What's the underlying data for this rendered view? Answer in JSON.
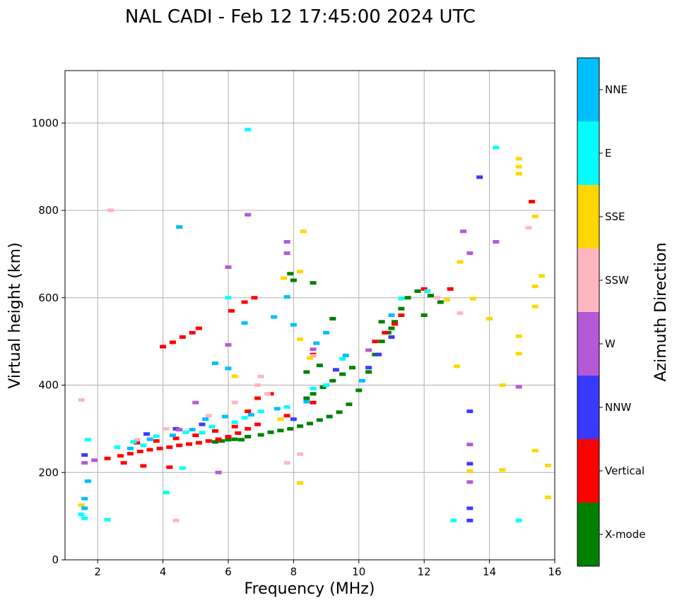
{
  "chart_data": {
    "type": "scatter",
    "title": "NAL CADI - Feb 12 17:45:00 2024 UTC",
    "xlabel": "Frequency (MHz)",
    "ylabel": "Virtual height (km)",
    "xlim": [
      1,
      16
    ],
    "ylim": [
      0,
      1120
    ],
    "xticks": [
      2,
      4,
      6,
      8,
      10,
      12,
      14,
      16
    ],
    "yticks": [
      0,
      200,
      400,
      600,
      800,
      1000
    ],
    "grid": true,
    "colorbar": {
      "label": "Azimuth Direction",
      "categories": [
        "X-mode",
        "Vertical",
        "NNW",
        "W",
        "SSW",
        "SSE",
        "E",
        "NNE"
      ],
      "colors": [
        "#008000",
        "#ff0000",
        "#3a3aff",
        "#b45ad6",
        "#ffb6c1",
        "#ffd700",
        "#00ffff",
        "#00bfff"
      ]
    },
    "series": [
      {
        "name": "X-mode",
        "points": [
          [
            5.6,
            270
          ],
          [
            5.8,
            272
          ],
          [
            6.0,
            275
          ],
          [
            6.2,
            276
          ],
          [
            6.4,
            275
          ],
          [
            6.6,
            282
          ],
          [
            7.0,
            286
          ],
          [
            7.3,
            292
          ],
          [
            7.6,
            296
          ],
          [
            7.9,
            300
          ],
          [
            8.2,
            306
          ],
          [
            8.5,
            312
          ],
          [
            8.8,
            320
          ],
          [
            9.1,
            328
          ],
          [
            9.4,
            338
          ],
          [
            9.7,
            356
          ],
          [
            10.0,
            388
          ],
          [
            10.3,
            430
          ],
          [
            10.5,
            470
          ],
          [
            10.7,
            500
          ],
          [
            10.9,
            520
          ],
          [
            11.1,
            545
          ],
          [
            11.3,
            575
          ],
          [
            11.5,
            600
          ],
          [
            11.8,
            615
          ],
          [
            12.2,
            605
          ],
          [
            12.5,
            590
          ],
          [
            8.4,
            370
          ],
          [
            8.6,
            380
          ],
          [
            8.9,
            395
          ],
          [
            9.2,
            410
          ],
          [
            9.5,
            425
          ],
          [
            9.8,
            440
          ],
          [
            8.0,
            640
          ],
          [
            8.6,
            634
          ],
          [
            9.2,
            552
          ],
          [
            10.7,
            545
          ],
          [
            7.9,
            655
          ],
          [
            8.4,
            430
          ],
          [
            8.8,
            445
          ],
          [
            12.0,
            560
          ],
          [
            11.0,
            530
          ]
        ]
      },
      {
        "name": "Vertical",
        "points": [
          [
            2.3,
            232
          ],
          [
            2.7,
            238
          ],
          [
            3.0,
            243
          ],
          [
            3.3,
            248
          ],
          [
            3.6,
            252
          ],
          [
            3.9,
            255
          ],
          [
            4.2,
            258
          ],
          [
            4.5,
            262
          ],
          [
            4.8,
            265
          ],
          [
            5.1,
            268
          ],
          [
            5.4,
            272
          ],
          [
            5.7,
            276
          ],
          [
            6.0,
            282
          ],
          [
            6.3,
            290
          ],
          [
            6.6,
            300
          ],
          [
            6.9,
            310
          ],
          [
            3.2,
            268
          ],
          [
            3.8,
            272
          ],
          [
            4.4,
            278
          ],
          [
            5.0,
            285
          ],
          [
            5.6,
            295
          ],
          [
            6.2,
            305
          ],
          [
            6.6,
            340
          ],
          [
            6.9,
            370
          ],
          [
            7.3,
            380
          ],
          [
            4.0,
            488
          ],
          [
            4.3,
            498
          ],
          [
            4.6,
            510
          ],
          [
            4.9,
            520
          ],
          [
            5.1,
            530
          ],
          [
            6.1,
            570
          ],
          [
            6.5,
            590
          ],
          [
            6.8,
            600
          ],
          [
            8.6,
            470
          ],
          [
            10.5,
            500
          ],
          [
            10.8,
            520
          ],
          [
            11.1,
            540
          ],
          [
            11.3,
            560
          ],
          [
            12.0,
            620
          ],
          [
            12.8,
            620
          ],
          [
            15.3,
            820
          ],
          [
            2.8,
            222
          ],
          [
            3.4,
            215
          ],
          [
            4.2,
            212
          ],
          [
            7.8,
            330
          ],
          [
            8.6,
            360
          ]
        ]
      },
      {
        "name": "NNW",
        "points": [
          [
            1.6,
            240
          ],
          [
            13.4,
            220
          ],
          [
            13.4,
            340
          ],
          [
            13.4,
            118
          ],
          [
            13.4,
            90
          ],
          [
            13.7,
            876
          ],
          [
            10.3,
            440
          ],
          [
            10.6,
            470
          ],
          [
            11.0,
            510
          ],
          [
            9.3,
            435
          ],
          [
            8.0,
            322
          ],
          [
            3.5,
            288
          ],
          [
            4.4,
            300
          ],
          [
            5.2,
            310
          ]
        ]
      },
      {
        "name": "W",
        "points": [
          [
            1.6,
            222
          ],
          [
            1.9,
            228
          ],
          [
            6.0,
            492
          ],
          [
            6.0,
            670
          ],
          [
            6.6,
            790
          ],
          [
            7.8,
            728
          ],
          [
            7.8,
            702
          ],
          [
            8.6,
            482
          ],
          [
            10.3,
            480
          ],
          [
            13.4,
            702
          ],
          [
            13.4,
            264
          ],
          [
            13.4,
            178
          ],
          [
            13.2,
            752
          ],
          [
            14.2,
            728
          ],
          [
            14.9,
            396
          ],
          [
            5.7,
            200
          ],
          [
            4.5,
            298
          ],
          [
            5.0,
            360
          ]
        ]
      },
      {
        "name": "SSW",
        "points": [
          [
            1.5,
            366
          ],
          [
            2.4,
            800
          ],
          [
            4.4,
            90
          ],
          [
            8.2,
            242
          ],
          [
            7.8,
            222
          ],
          [
            13.1,
            565
          ],
          [
            12.4,
            600
          ],
          [
            15.2,
            760
          ],
          [
            8.6,
            467
          ],
          [
            7.0,
            420
          ],
          [
            6.9,
            400
          ],
          [
            3.2,
            275
          ],
          [
            4.1,
            300
          ],
          [
            5.4,
            330
          ],
          [
            6.2,
            360
          ],
          [
            7.2,
            380
          ]
        ]
      },
      {
        "name": "SSE",
        "points": [
          [
            1.5,
            125
          ],
          [
            8.3,
            752
          ],
          [
            8.2,
            660
          ],
          [
            8.2,
            505
          ],
          [
            8.2,
            176
          ],
          [
            7.7,
            645
          ],
          [
            13.0,
            443
          ],
          [
            13.1,
            682
          ],
          [
            13.5,
            598
          ],
          [
            13.4,
            203
          ],
          [
            14.0,
            552
          ],
          [
            14.4,
            206
          ],
          [
            14.4,
            400
          ],
          [
            14.9,
            918
          ],
          [
            14.9,
            900
          ],
          [
            14.9,
            884
          ],
          [
            15.4,
            786
          ],
          [
            15.6,
            650
          ],
          [
            15.4,
            626
          ],
          [
            15.4,
            580
          ],
          [
            14.9,
            512
          ],
          [
            14.9,
            472
          ],
          [
            15.4,
            250
          ],
          [
            15.8,
            216
          ],
          [
            15.8,
            143
          ],
          [
            8.5,
            462
          ],
          [
            12.7,
            595
          ],
          [
            6.2,
            420
          ],
          [
            7.6,
            322
          ]
        ]
      },
      {
        "name": "E",
        "points": [
          [
            1.5,
            104
          ],
          [
            1.6,
            95
          ],
          [
            1.7,
            275
          ],
          [
            2.3,
            92
          ],
          [
            4.1,
            154
          ],
          [
            4.6,
            210
          ],
          [
            6.0,
            600
          ],
          [
            6.5,
            325
          ],
          [
            6.6,
            985
          ],
          [
            9.5,
            460
          ],
          [
            12.1,
            615
          ],
          [
            12.9,
            90
          ],
          [
            14.2,
            944
          ],
          [
            14.9,
            90
          ],
          [
            2.6,
            258
          ],
          [
            3.1,
            270
          ],
          [
            3.8,
            283
          ],
          [
            4.7,
            292
          ],
          [
            5.5,
            305
          ],
          [
            7.0,
            340
          ],
          [
            7.8,
            350
          ],
          [
            8.6,
            392
          ],
          [
            9.0,
            400
          ],
          [
            11.3,
            598
          ],
          [
            3.4,
            262
          ],
          [
            5.2,
            291
          ],
          [
            6.2,
            315
          ]
        ]
      },
      {
        "name": "NNE",
        "points": [
          [
            1.6,
            140
          ],
          [
            1.6,
            118
          ],
          [
            1.7,
            180
          ],
          [
            4.5,
            762
          ],
          [
            5.6,
            450
          ],
          [
            6.0,
            438
          ],
          [
            7.8,
            602
          ],
          [
            8.0,
            538
          ],
          [
            8.7,
            496
          ],
          [
            9.0,
            520
          ],
          [
            6.5,
            542
          ],
          [
            7.4,
            556
          ],
          [
            3.0,
            255
          ],
          [
            3.6,
            276
          ],
          [
            4.3,
            285
          ],
          [
            4.9,
            298
          ],
          [
            5.3,
            322
          ],
          [
            5.9,
            328
          ],
          [
            6.7,
            332
          ],
          [
            7.5,
            346
          ],
          [
            8.4,
            362
          ],
          [
            9.6,
            468
          ],
          [
            10.1,
            410
          ],
          [
            11.0,
            560
          ]
        ]
      }
    ]
  }
}
